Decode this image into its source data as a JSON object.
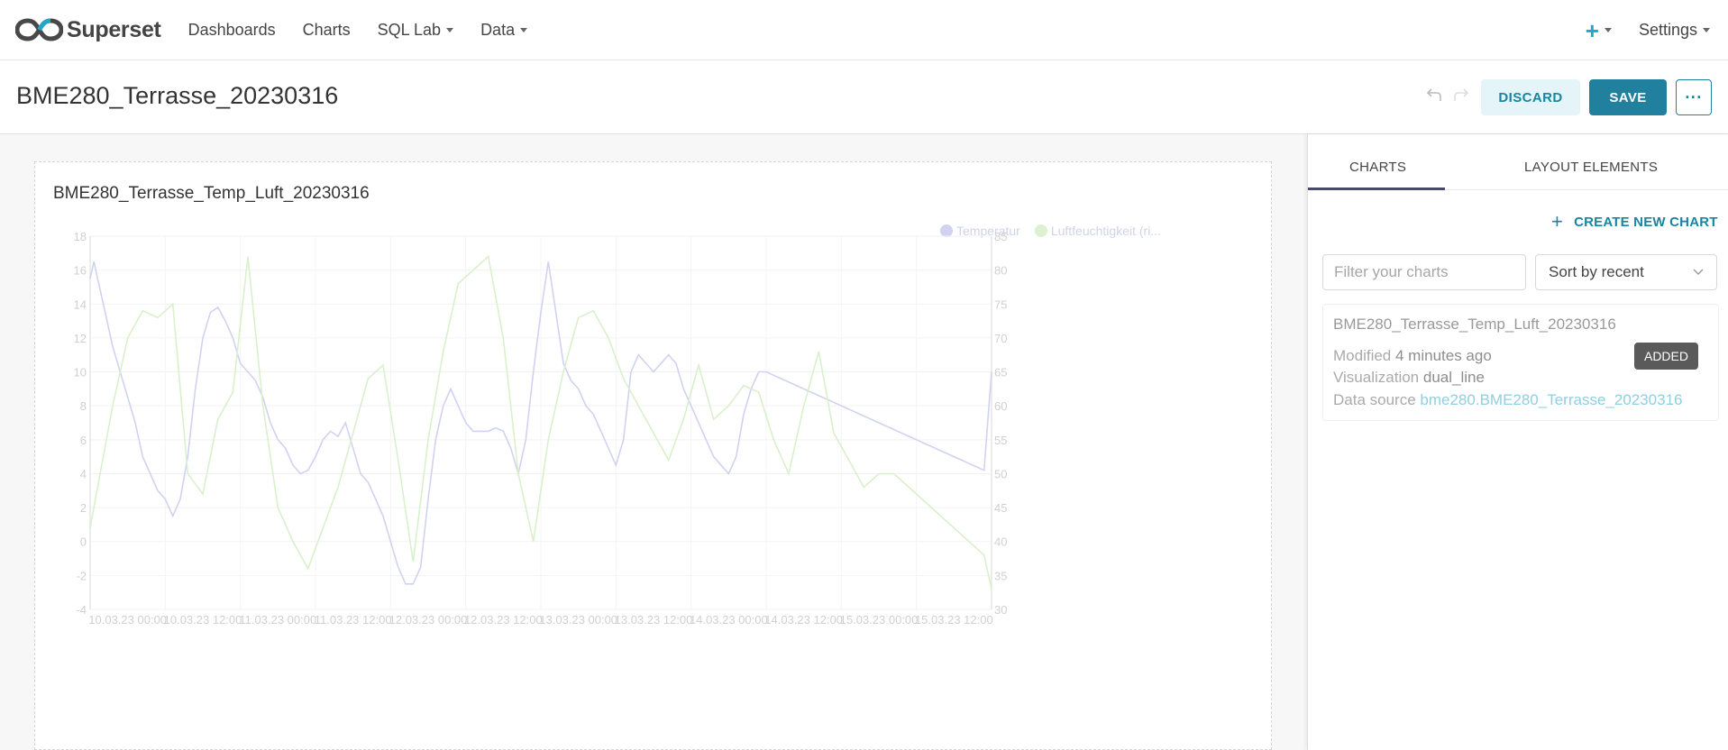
{
  "navbar": {
    "brand": "Superset",
    "items": [
      {
        "label": "Dashboards",
        "dropdown": false
      },
      {
        "label": "Charts",
        "dropdown": false
      },
      {
        "label": "SQL Lab",
        "dropdown": true
      },
      {
        "label": "Data",
        "dropdown": true
      }
    ],
    "plus_icon": "+",
    "settings_label": "Settings"
  },
  "header": {
    "title": "BME280_Terrasse_20230316",
    "undo_icon": "undo-icon",
    "redo_icon": "redo-icon",
    "discard_label": "DISCARD",
    "save_label": "SAVE",
    "more_label": "···"
  },
  "chart": {
    "title": "BME280_Terrasse_Temp_Luft_20230316",
    "legend": [
      {
        "label": "Temperatur",
        "color": "#c9cdf0"
      },
      {
        "label": "Luftfeuchtigkeit (ri...",
        "color": "#d6efc6"
      }
    ]
  },
  "chart_data": {
    "type": "line",
    "title": "BME280_Terrasse_Temp_Luft_20230316",
    "x_tick_labels": [
      "10.03.23 00:00",
      "10.03.23 12:00",
      "11.03.23 00:00",
      "11.03.23 12:00",
      "12.03.23 00:00",
      "12.03.23 12:00",
      "13.03.23 00:00",
      "13.03.23 12:00",
      "14.03.23 00:00",
      "14.03.23 12:00",
      "15.03.23 00:00",
      "15.03.23 12:00"
    ],
    "y_left_ticks": [
      -4,
      -2,
      0,
      2,
      4,
      6,
      8,
      10,
      12,
      14,
      16,
      18
    ],
    "y_right_ticks": [
      30,
      35,
      40,
      45,
      50,
      55,
      60,
      65,
      70,
      75,
      80,
      85
    ],
    "ylim_left": [
      -4,
      18
    ],
    "ylim_right": [
      30,
      85
    ],
    "grid": true,
    "legend_position": "top-right",
    "series": [
      {
        "name": "Temperatur",
        "axis": "left",
        "color": "#cfd3f0",
        "x": [
          0,
          0.05,
          0.1,
          0.2,
          0.3,
          0.4,
          0.5,
          0.6,
          0.7,
          0.8,
          0.9,
          1.0,
          1.1,
          1.2,
          1.3,
          1.4,
          1.5,
          1.6,
          1.7,
          1.8,
          1.9,
          2.0,
          2.1,
          2.2,
          2.3,
          2.4,
          2.5,
          2.6,
          2.7,
          2.8,
          2.9,
          3.0,
          3.1,
          3.2,
          3.3,
          3.4,
          3.5,
          3.6,
          3.7,
          3.8,
          3.9,
          4.0,
          4.1,
          4.2,
          4.3,
          4.4,
          4.5,
          4.6,
          4.7,
          4.8,
          4.9,
          5.0,
          5.1,
          5.2,
          5.3,
          5.4,
          5.5,
          5.6,
          5.7,
          5.8,
          5.9,
          6.0,
          6.1,
          6.2,
          6.3,
          6.4,
          6.5,
          6.6,
          6.7,
          6.8,
          6.9,
          7.0,
          7.1,
          7.2,
          7.3,
          7.4,
          7.5,
          7.6,
          7.7,
          7.8,
          7.9,
          8.0,
          8.1,
          8.2,
          8.3,
          8.4,
          8.5,
          8.6,
          8.7,
          8.8,
          8.9,
          9.0,
          9.1,
          9.2,
          9.3,
          9.4,
          9.5,
          9.6,
          9.7,
          9.8,
          9.9,
          10.0,
          10.1,
          10.2,
          10.3,
          10.4,
          10.5,
          10.6,
          10.7,
          10.8,
          10.9,
          11.0,
          11.1,
          11.2,
          11.3,
          11.4,
          11.5,
          11.6,
          11.7,
          11.8,
          11.9,
          12.0
        ],
        "values": [
          15.5,
          16.5,
          15.5,
          13.5,
          11.5,
          10.0,
          8.5,
          7.0,
          5.0,
          4.0,
          3.0,
          2.5,
          1.5,
          2.5,
          5.0,
          9.0,
          12.0,
          13.5,
          13.8,
          13.0,
          12.0,
          10.5,
          10.0,
          9.5,
          8.5,
          7.0,
          6.0,
          5.5,
          4.5,
          4.0,
          4.2,
          5.0,
          6.0,
          6.5,
          6.2,
          7.0,
          5.5,
          4.0,
          3.5,
          2.5,
          1.5,
          0.0,
          -1.5,
          -2.5,
          -2.5,
          -1.5,
          2.5,
          6.0,
          8.0,
          9.0,
          8.0,
          7.0,
          6.5,
          6.5,
          6.5,
          6.7,
          6.5,
          5.5,
          4.0,
          6.0,
          10.0,
          13.5,
          16.5,
          13.5,
          10.5,
          9.5,
          9.0,
          8.0,
          7.5,
          6.5,
          5.5,
          4.5,
          6.0,
          10.0,
          11.0,
          10.5,
          10.0,
          10.5,
          11.0,
          10.5,
          9.0,
          8.0,
          7.0,
          6.0,
          5.0,
          4.5,
          4.0,
          5.0,
          7.5,
          9.0,
          10.0,
          10.0,
          9.8,
          9.6,
          9.4,
          9.2,
          9.0,
          8.8,
          8.6,
          8.4,
          8.2,
          8.0,
          7.8,
          7.6,
          7.4,
          7.2,
          7.0,
          6.8,
          6.6,
          6.4,
          6.2,
          6.0,
          5.8,
          5.6,
          5.4,
          5.2,
          5.0,
          4.8,
          4.6,
          4.4,
          4.2,
          10.0
        ],
        "note_unused": ""
      },
      {
        "name": "Luftfeuchtigkeit (ri...",
        "axis": "right",
        "color": "#d9f0cc",
        "x": [
          0,
          0.1,
          0.3,
          0.5,
          0.7,
          0.9,
          1.1,
          1.3,
          1.5,
          1.7,
          1.9,
          2.1,
          2.3,
          2.5,
          2.7,
          2.9,
          3.1,
          3.3,
          3.5,
          3.7,
          3.9,
          4.1,
          4.3,
          4.5,
          4.7,
          4.9,
          5.1,
          5.3,
          5.5,
          5.7,
          5.9,
          6.1,
          6.3,
          6.5,
          6.7,
          6.9,
          7.1,
          7.3,
          7.5,
          7.7,
          7.9,
          8.1,
          8.3,
          8.5,
          8.7,
          8.9,
          9.1,
          9.3,
          9.5,
          9.7,
          9.9,
          10.1,
          10.3,
          10.5,
          10.7,
          10.9,
          11.1,
          11.3,
          11.5,
          11.7,
          11.9,
          12.0
        ],
        "values": [
          42,
          48,
          60,
          70,
          74,
          73,
          75,
          50,
          47,
          58,
          62,
          82,
          60,
          45,
          40,
          36,
          42,
          48,
          56,
          64,
          66,
          52,
          37,
          55,
          68,
          78,
          80,
          82,
          70,
          50,
          40,
          55,
          65,
          73,
          74,
          70,
          64,
          60,
          56,
          52,
          58,
          66,
          58,
          60,
          63,
          62,
          55,
          50,
          60,
          68,
          56,
          52,
          48,
          50,
          50,
          48,
          46,
          44,
          42,
          40,
          38,
          33
        ]
      }
    ]
  },
  "panel": {
    "tab_charts": "CHARTS",
    "tab_layout": "LAYOUT ELEMENTS",
    "create_plus": "+",
    "create_label": "CREATE NEW CHART",
    "filter_placeholder": "Filter your charts",
    "sort_label": "Sort by recent",
    "item": {
      "title": "BME280_Terrasse_Temp_Luft_20230316",
      "modified_label": "Modified",
      "modified_value": "4 minutes ago",
      "viz_label": "Visualization",
      "viz_value": "dual_line",
      "ds_label": "Data source",
      "ds_value": "bme280.BME280_Terrasse_20230316",
      "badge": "ADDED"
    }
  }
}
